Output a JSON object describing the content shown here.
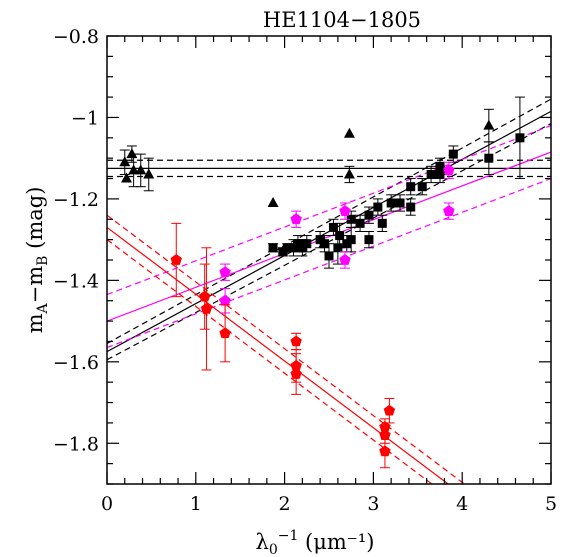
{
  "chart_data": {
    "type": "scatter",
    "title": "HE1104−1805",
    "xlabel": "λ₀⁻¹ (μm⁻¹)",
    "ylabel": "mₐ−mᵦ (mag)",
    "ylabel_parts": {
      "m1": "m",
      "sub1": "A",
      "minus": "−",
      "m2": "m",
      "sub2": "B",
      "unit": " (mag)"
    },
    "xlabel_parts": {
      "lambda": "λ",
      "sub": "0",
      "sup": "−1",
      "unit": "  (μm⁻¹)"
    },
    "xlim": [
      0,
      5
    ],
    "ylim": [
      -0.8,
      -1.9
    ],
    "y_inverted": true,
    "x_ticks": [
      0,
      1,
      2,
      3,
      4,
      5
    ],
    "x_tick_labels": [
      "0",
      "1",
      "2",
      "3",
      "4",
      "5"
    ],
    "y_ticks": [
      -0.8,
      -1.0,
      -1.2,
      -1.4,
      -1.6,
      -1.8
    ],
    "y_tick_labels": [
      "−0.8",
      "−1",
      "−1.2",
      "−1.4",
      "−1.6",
      "−1.8"
    ],
    "grid": false,
    "series": [
      {
        "marker": "triangle",
        "color": "#000000",
        "points": [
          {
            "x": 0.2,
            "y": -1.11,
            "err": 0.03
          },
          {
            "x": 0.22,
            "y": -1.15,
            "err": 0.0
          },
          {
            "x": 0.28,
            "y": -1.09,
            "err": 0.02
          },
          {
            "x": 0.3,
            "y": -1.13,
            "err": 0.04
          },
          {
            "x": 0.38,
            "y": -1.13,
            "err": 0.04
          },
          {
            "x": 0.47,
            "y": -1.14,
            "err": 0.04
          },
          {
            "x": 1.87,
            "y": -1.21,
            "err": 0.0
          },
          {
            "x": 2.73,
            "y": -1.04,
            "err": 0.0
          },
          {
            "x": 2.73,
            "y": -1.14,
            "err": 0.02
          },
          {
            "x": 4.3,
            "y": -1.02,
            "err": 0.04
          }
        ]
      },
      {
        "marker": "square",
        "color": "#000000",
        "points": [
          {
            "x": 1.87,
            "y": -1.32,
            "err": 0.01
          },
          {
            "x": 1.98,
            "y": -1.33,
            "err": 0.01
          },
          {
            "x": 2.03,
            "y": -1.32,
            "err": 0.01
          },
          {
            "x": 2.1,
            "y": -1.32,
            "err": 0.02
          },
          {
            "x": 2.15,
            "y": -1.31,
            "err": 0.02
          },
          {
            "x": 2.2,
            "y": -1.32,
            "err": 0.02
          },
          {
            "x": 2.25,
            "y": -1.31,
            "err": 0.02
          },
          {
            "x": 2.4,
            "y": -1.3,
            "err": 0.02
          },
          {
            "x": 2.45,
            "y": -1.31,
            "err": 0.02
          },
          {
            "x": 2.5,
            "y": -1.34,
            "err": 0.03
          },
          {
            "x": 2.55,
            "y": -1.27,
            "err": 0.02
          },
          {
            "x": 2.6,
            "y": -1.32,
            "err": 0.04
          },
          {
            "x": 2.62,
            "y": -1.29,
            "err": 0.03
          },
          {
            "x": 2.7,
            "y": -1.31,
            "err": 0.02
          },
          {
            "x": 2.75,
            "y": -1.25,
            "err": 0.02
          },
          {
            "x": 2.75,
            "y": -1.3,
            "err": 0.03
          },
          {
            "x": 2.85,
            "y": -1.26,
            "err": 0.02
          },
          {
            "x": 2.95,
            "y": -1.24,
            "err": 0.02
          },
          {
            "x": 2.95,
            "y": -1.3,
            "err": 0.02
          },
          {
            "x": 3.05,
            "y": -1.22,
            "err": 0.02
          },
          {
            "x": 3.1,
            "y": -1.26,
            "err": 0.02
          },
          {
            "x": 3.2,
            "y": -1.21,
            "err": 0.02
          },
          {
            "x": 3.3,
            "y": -1.21,
            "err": 0.02
          },
          {
            "x": 3.42,
            "y": -1.22,
            "err": 0.02
          },
          {
            "x": 3.42,
            "y": -1.17,
            "err": 0.02
          },
          {
            "x": 3.55,
            "y": -1.17,
            "err": 0.02
          },
          {
            "x": 3.65,
            "y": -1.14,
            "err": 0.02
          },
          {
            "x": 3.75,
            "y": -1.12,
            "err": 0.02
          },
          {
            "x": 3.75,
            "y": -1.14,
            "err": 0.02
          },
          {
            "x": 3.9,
            "y": -1.09,
            "err": 0.02
          },
          {
            "x": 4.3,
            "y": -1.1,
            "err": 0.04
          },
          {
            "x": 4.65,
            "y": -1.05,
            "err": 0.1
          }
        ]
      },
      {
        "marker": "pentagon",
        "color": "#ff00ff",
        "points": [
          {
            "x": 1.33,
            "y": -1.38,
            "err": 0.02
          },
          {
            "x": 1.33,
            "y": -1.45,
            "err": 0.03
          },
          {
            "x": 2.13,
            "y": -1.25,
            "err": 0.02
          },
          {
            "x": 2.68,
            "y": -1.23,
            "err": 0.02
          },
          {
            "x": 2.68,
            "y": -1.35,
            "err": 0.02
          },
          {
            "x": 3.85,
            "y": -1.13,
            "err": 0.02
          },
          {
            "x": 3.85,
            "y": -1.23,
            "err": 0.02
          }
        ]
      },
      {
        "marker": "pentagon",
        "color": "#ff0000",
        "points": [
          {
            "x": 0.78,
            "y": -1.35,
            "err": 0.09
          },
          {
            "x": 1.1,
            "y": -1.44,
            "err": 0.08
          },
          {
            "x": 1.12,
            "y": -1.47,
            "err": 0.15
          },
          {
            "x": 1.33,
            "y": -1.53,
            "err": 0.07
          },
          {
            "x": 2.13,
            "y": -1.55,
            "err": 0.02
          },
          {
            "x": 2.13,
            "y": -1.61,
            "err": 0.04
          },
          {
            "x": 2.13,
            "y": -1.63,
            "err": 0.05
          },
          {
            "x": 3.13,
            "y": -1.76,
            "err": 0.02
          },
          {
            "x": 3.13,
            "y": -1.78,
            "err": 0.02
          },
          {
            "x": 3.13,
            "y": -1.82,
            "err": 0.04
          },
          {
            "x": 3.18,
            "y": -1.72,
            "err": 0.03
          }
        ]
      }
    ],
    "lines": [
      {
        "color": "#000000",
        "style": "solid",
        "x0": 0,
        "y0": -1.125,
        "x1": 5,
        "y1": -1.125
      },
      {
        "color": "#000000",
        "style": "dashed",
        "x0": 0,
        "y0": -1.105,
        "x1": 5,
        "y1": -1.105
      },
      {
        "color": "#000000",
        "style": "dashed",
        "x0": 0,
        "y0": -1.145,
        "x1": 5,
        "y1": -1.145
      },
      {
        "color": "#000000",
        "style": "solid",
        "x0": 0,
        "y0": -1.575,
        "x1": 5,
        "y1": -0.985
      },
      {
        "color": "#000000",
        "style": "dashed",
        "x0": 0,
        "y0": -1.555,
        "x1": 5,
        "y1": -0.955
      },
      {
        "color": "#000000",
        "style": "dashed",
        "x0": 0,
        "y0": -1.595,
        "x1": 5,
        "y1": -1.015
      },
      {
        "color": "#ff00ff",
        "style": "solid",
        "x0": 0,
        "y0": -1.5,
        "x1": 5,
        "y1": -1.085
      },
      {
        "color": "#ff00ff",
        "style": "dashed",
        "x0": 0,
        "y0": -1.435,
        "x1": 5,
        "y1": -1.02
      },
      {
        "color": "#ff00ff",
        "style": "dashed",
        "x0": 0,
        "y0": -1.565,
        "x1": 5,
        "y1": -1.15
      },
      {
        "color": "#ff0000",
        "style": "solid",
        "x0": 0,
        "y0": -1.27,
        "x1": 5,
        "y1": -2.09
      },
      {
        "color": "#ff0000",
        "style": "dashed",
        "x0": 0,
        "y0": -1.24,
        "x1": 5,
        "y1": -2.06
      },
      {
        "color": "#ff0000",
        "style": "dashed",
        "x0": 0,
        "y0": -1.3,
        "x1": 5,
        "y1": -2.12
      }
    ]
  }
}
